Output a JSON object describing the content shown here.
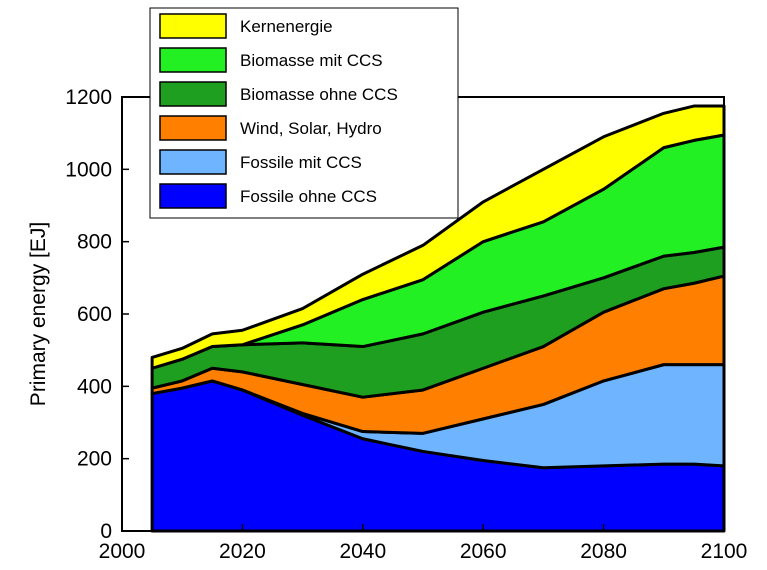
{
  "chart_data": {
    "type": "area",
    "stacked": true,
    "title": "",
    "xlabel": "",
    "ylabel": "Primary energy [EJ]",
    "xlim": [
      2000,
      2100
    ],
    "ylim": [
      0,
      1200
    ],
    "xticks": [
      2000,
      2020,
      2040,
      2060,
      2080,
      2100
    ],
    "yticks": [
      0,
      200,
      400,
      600,
      800,
      1000,
      1200
    ],
    "grid": false,
    "legend_position": "top-left",
    "x": [
      2005,
      2010,
      2015,
      2020,
      2030,
      2040,
      2050,
      2060,
      2070,
      2080,
      2090,
      2095,
      2100
    ],
    "series": [
      {
        "name": "Fossile ohne CCS",
        "color": "#0000ff",
        "values": [
          380,
          395,
          415,
          390,
          320,
          255,
          220,
          195,
          175,
          180,
          185,
          185,
          180
        ]
      },
      {
        "name": "Fossile mit CCS",
        "color": "#6eb4ff",
        "values": [
          0,
          0,
          0,
          0,
          5,
          20,
          50,
          115,
          175,
          235,
          275,
          275,
          280
        ]
      },
      {
        "name": "Wind, Solar, Hydro",
        "color": "#ff7f00",
        "values": [
          15,
          20,
          35,
          50,
          80,
          95,
          120,
          140,
          160,
          190,
          210,
          225,
          245
        ]
      },
      {
        "name": "Biomasse ohne CCS",
        "color": "#1f9f1f",
        "values": [
          55,
          60,
          60,
          75,
          115,
          140,
          155,
          155,
          140,
          95,
          90,
          85,
          80
        ]
      },
      {
        "name": "Biomasse mit CCS",
        "color": "#22f022",
        "values": [
          0,
          0,
          0,
          0,
          50,
          130,
          150,
          195,
          205,
          245,
          300,
          310,
          310
        ]
      },
      {
        "name": "Kernenergie",
        "color": "#ffff00",
        "values": [
          30,
          30,
          35,
          40,
          45,
          70,
          95,
          110,
          145,
          145,
          95,
          95,
          80
        ]
      }
    ]
  }
}
